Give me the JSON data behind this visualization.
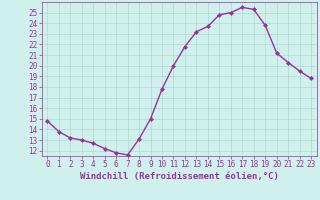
{
  "x": [
    0,
    1,
    2,
    3,
    4,
    5,
    6,
    7,
    8,
    9,
    10,
    11,
    12,
    13,
    14,
    15,
    16,
    17,
    18,
    19,
    20,
    21,
    22,
    23
  ],
  "y": [
    14.8,
    13.8,
    13.2,
    13.0,
    12.7,
    12.2,
    11.8,
    11.6,
    13.1,
    15.0,
    17.8,
    20.0,
    21.8,
    23.2,
    23.7,
    24.8,
    25.0,
    25.5,
    25.3,
    23.8,
    21.2,
    20.3,
    19.5,
    18.8
  ],
  "line_color": "#993399",
  "marker": "D",
  "marker_size": 2.0,
  "bg_color": "#cff0ec",
  "grid_color": "#aaddcc",
  "xlabel": "Windchill (Refroidissement éolien,°C)",
  "xlabel_color": "#993399",
  "tick_color": "#993399",
  "ylim": [
    11.5,
    26.0
  ],
  "yticks": [
    12,
    13,
    14,
    15,
    16,
    17,
    18,
    19,
    20,
    21,
    22,
    23,
    24,
    25
  ],
  "xtick_labels": [
    "0",
    "1",
    "2",
    "3",
    "4",
    "5",
    "6",
    "7",
    "8",
    "9",
    "10",
    "11",
    "12",
    "13",
    "14",
    "15",
    "16",
    "17",
    "18",
    "19",
    "20",
    "21",
    "22",
    "23"
  ],
  "line_width": 1.0,
  "tick_fontsize": 5.5,
  "xlabel_fontsize": 6.5,
  "xlabel_fontweight": "bold"
}
